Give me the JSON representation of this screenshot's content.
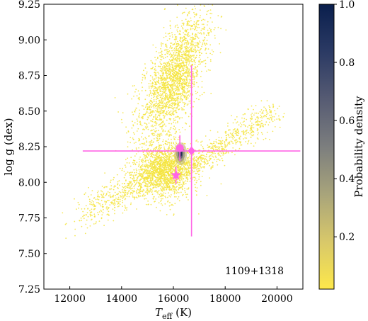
{
  "chart_data": {
    "type": "scatter",
    "xlabel_main": "T",
    "xlabel_sub": "eff",
    "xlabel_unit": " (K)",
    "ylabel": "log g (dex)",
    "xlim": [
      11000,
      21000
    ],
    "ylim": [
      7.25,
      9.25
    ],
    "x_ticks": [
      12000,
      14000,
      16000,
      18000,
      20000
    ],
    "x_tick_labels": [
      "12000",
      "14000",
      "16000",
      "18000",
      "20000"
    ],
    "y_ticks": [
      7.25,
      7.5,
      7.75,
      8.0,
      8.25,
      8.5,
      8.75,
      9.0,
      9.25
    ],
    "y_tick_labels": [
      "7.25",
      "7.50",
      "7.75",
      "8.00",
      "8.25",
      "8.50",
      "8.75",
      "9.00",
      "9.25"
    ],
    "annotation": "1109+1318",
    "colorbar": {
      "label": "Probability density",
      "range": [
        0.02,
        1.0
      ],
      "ticks": [
        0.2,
        0.4,
        0.6,
        0.8,
        1.0
      ],
      "tick_labels": [
        "0.2",
        "0.4",
        "0.6",
        "0.8",
        "1.0"
      ],
      "colors": [
        "#fde84b",
        "#d8c86a",
        "#a8a47b",
        "#7c7e7e",
        "#565b73",
        "#2b3a64",
        "#0a1f4d"
      ]
    },
    "density_regions": [
      {
        "name": "upper branch",
        "x_center": 16000,
        "y_center": 8.72,
        "x_spread": 500,
        "y_spread": 0.22,
        "tilt": 1400
      },
      {
        "name": "lower cluster",
        "x_center": 15700,
        "y_center": 8.08,
        "x_spread": 500,
        "y_spread": 0.1,
        "tilt": 0
      },
      {
        "name": "lower-left tail",
        "x_from": 12000,
        "y_from": 7.7,
        "x_to": 16000,
        "y_to": 8.15
      },
      {
        "name": "right branch",
        "x_from": 16500,
        "y_from": 8.1,
        "x_to": 20000,
        "y_to": 8.5
      }
    ],
    "peak": {
      "x": 16280,
      "y": 8.2
    },
    "solutions": [
      {
        "marker": "star",
        "x": 16100,
        "y": 8.05,
        "x_err": 0,
        "y_err": 0.06
      },
      {
        "marker": "circle",
        "x": 16250,
        "y": 8.24,
        "x_err": 0,
        "y_err": 0.09
      },
      {
        "marker": "diamond",
        "x": 16700,
        "y": 8.22,
        "x_err": 4200,
        "y_err": 0.6
      }
    ],
    "marker_color": "#ff66e6"
  }
}
